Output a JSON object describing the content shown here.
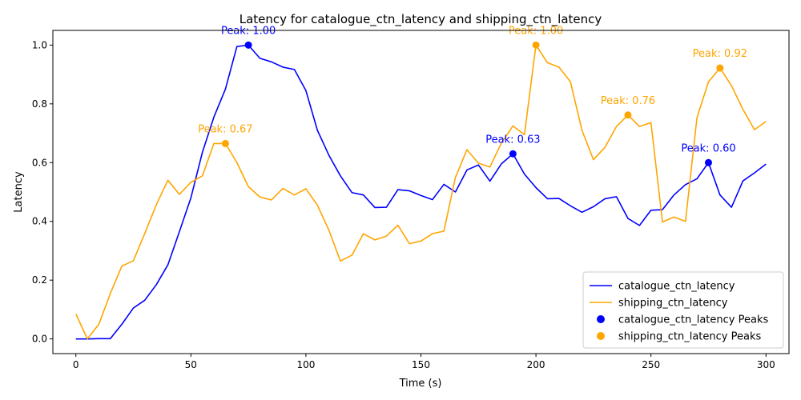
{
  "chart_data": {
    "type": "line",
    "title": "Latency for catalogue_ctn_latency and shipping_ctn_latency",
    "xlabel": "Time (s)",
    "ylabel": "Latency",
    "xlim": [
      -10,
      310
    ],
    "ylim": [
      -0.05,
      1.05
    ],
    "xticks": [
      0,
      50,
      100,
      150,
      200,
      250,
      300
    ],
    "xtick_labels": [
      "0",
      "50",
      "100",
      "150",
      "200",
      "250",
      "300"
    ],
    "yticks": [
      0.0,
      0.2,
      0.4,
      0.6,
      0.8,
      1.0
    ],
    "ytick_labels": [
      "0.0",
      "0.2",
      "0.4",
      "0.6",
      "0.8",
      "1.0"
    ],
    "grid": false,
    "legend_position": "bottom-right",
    "x": [
      0,
      5,
      10,
      15,
      20,
      25,
      30,
      35,
      40,
      45,
      50,
      55,
      60,
      65,
      70,
      75,
      80,
      85,
      90,
      95,
      100,
      105,
      110,
      115,
      120,
      125,
      130,
      135,
      140,
      145,
      150,
      155,
      160,
      165,
      170,
      175,
      180,
      185,
      190,
      195,
      200,
      205,
      210,
      215,
      220,
      225,
      230,
      235,
      240,
      245,
      250,
      255,
      260,
      265,
      270,
      275,
      280,
      285,
      290,
      295,
      300
    ],
    "series": [
      {
        "name": "catalogue_ctn_latency",
        "color": "#0000ff",
        "values": [
          0.0,
          0.0,
          0.001,
          0.001,
          0.05,
          0.105,
          0.132,
          0.185,
          0.252,
          0.365,
          0.48,
          0.635,
          0.755,
          0.85,
          0.995,
          1.0,
          0.955,
          0.943,
          0.925,
          0.917,
          0.845,
          0.71,
          0.625,
          0.555,
          0.498,
          0.49,
          0.447,
          0.448,
          0.508,
          0.504,
          0.488,
          0.474,
          0.526,
          0.5,
          0.575,
          0.592,
          0.537,
          0.596,
          0.63,
          0.561,
          0.515,
          0.477,
          0.478,
          0.453,
          0.431,
          0.45,
          0.477,
          0.484,
          0.41,
          0.386,
          0.438,
          0.44,
          0.49,
          0.525,
          0.545,
          0.6,
          0.49,
          0.448,
          0.538,
          0.565,
          0.595
        ]
      },
      {
        "name": "shipping_ctn_latency",
        "color": "#ffa500",
        "values": [
          0.085,
          0.0,
          0.05,
          0.155,
          0.248,
          0.266,
          0.36,
          0.457,
          0.54,
          0.492,
          0.533,
          0.555,
          0.665,
          0.665,
          0.6,
          0.518,
          0.483,
          0.473,
          0.512,
          0.49,
          0.511,
          0.455,
          0.37,
          0.265,
          0.285,
          0.358,
          0.337,
          0.35,
          0.387,
          0.324,
          0.333,
          0.358,
          0.367,
          0.55,
          0.644,
          0.598,
          0.585,
          0.667,
          0.725,
          0.695,
          1.0,
          0.94,
          0.925,
          0.875,
          0.71,
          0.61,
          0.652,
          0.723,
          0.762,
          0.723,
          0.736,
          0.398,
          0.415,
          0.4,
          0.753,
          0.875,
          0.922,
          0.862,
          0.781,
          0.712,
          0.74
        ]
      }
    ],
    "peaks": [
      {
        "series": "catalogue_ctn_latency",
        "x": 75,
        "y": 1.0,
        "label": "Peak: 1.00",
        "color": "#0000ff"
      },
      {
        "series": "catalogue_ctn_latency",
        "x": 190,
        "y": 0.63,
        "label": "Peak: 0.63",
        "color": "#0000ff"
      },
      {
        "series": "catalogue_ctn_latency",
        "x": 275,
        "y": 0.6,
        "label": "Peak: 0.60",
        "color": "#0000ff"
      },
      {
        "series": "shipping_ctn_latency",
        "x": 65,
        "y": 0.665,
        "label": "Peak: 0.67",
        "color": "#ffa500"
      },
      {
        "series": "shipping_ctn_latency",
        "x": 200,
        "y": 1.0,
        "label": "Peak: 1.00",
        "color": "#ffa500"
      },
      {
        "series": "shipping_ctn_latency",
        "x": 240,
        "y": 0.762,
        "label": "Peak: 0.76",
        "color": "#ffa500"
      },
      {
        "series": "shipping_ctn_latency",
        "x": 280,
        "y": 0.922,
        "label": "Peak: 0.92",
        "color": "#ffa500"
      }
    ],
    "legend": [
      {
        "label": "catalogue_ctn_latency",
        "kind": "line",
        "color": "#0000ff"
      },
      {
        "label": "shipping_ctn_latency",
        "kind": "line",
        "color": "#ffa500"
      },
      {
        "label": "catalogue_ctn_latency Peaks",
        "kind": "marker",
        "color": "#0000ff"
      },
      {
        "label": "shipping_ctn_latency Peaks",
        "kind": "marker",
        "color": "#ffa500"
      }
    ]
  }
}
